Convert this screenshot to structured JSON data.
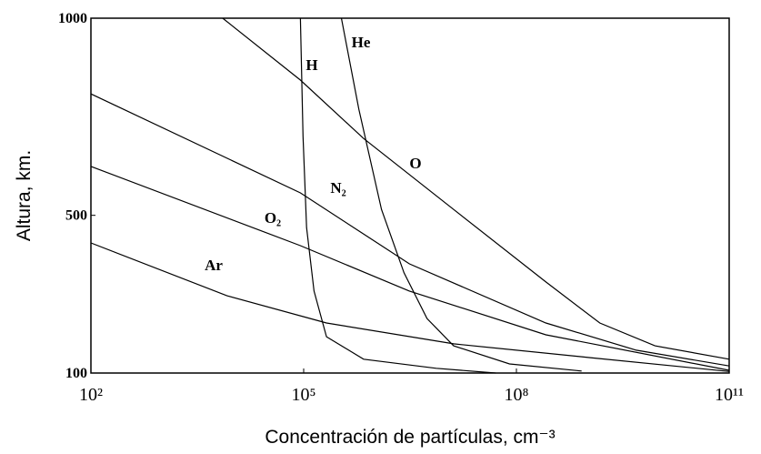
{
  "chart_data": {
    "type": "line",
    "xlabel": "Concentración de partículas, cm⁻³",
    "ylabel": "Altura, km.",
    "xscale": "log",
    "xlim": [
      100,
      100000000000
    ],
    "xticks": [
      {
        "value": 100,
        "label": "10²"
      },
      {
        "value": 100000,
        "label": "10⁵"
      },
      {
        "value": 100000000,
        "label": "10⁸"
      },
      {
        "value": 100000000000,
        "label": "10¹¹"
      }
    ],
    "ylim": [
      100,
      1000
    ],
    "yticks": [
      100,
      500,
      1000
    ],
    "color": "#000000",
    "series": [
      {
        "name": "H",
        "x": [
          90000,
          98000,
          110000,
          140000,
          210000,
          700000,
          7400000,
          51000000
        ],
        "values": [
          1000,
          700,
          469,
          308,
          192,
          135,
          112,
          100
        ]
      },
      {
        "name": "He",
        "x": [
          340000,
          600000,
          1250000,
          2600000,
          5500000,
          13000000,
          80000000,
          830000000
        ],
        "values": [
          1000,
          769,
          515,
          354,
          238,
          169,
          123,
          105
        ]
      },
      {
        "name": "O",
        "x": [
          7200,
          90000,
          700000,
          13000000,
          260000000,
          1500000000,
          9000000000,
          100000000000
        ],
        "values": [
          1000,
          843,
          695,
          515,
          331,
          227,
          169,
          135
        ]
      },
      {
        "name": "N₂",
        "x": [
          100,
          90000,
          3100000,
          260000000,
          4900000000,
          100000000000
        ],
        "values": [
          808,
          557,
          377,
          227,
          158,
          118
        ]
      },
      {
        "name": "O₂",
        "x": [
          100,
          90000,
          3100000,
          260000000,
          100000000000
        ],
        "values": [
          624,
          423,
          308,
          197,
          107
        ]
      },
      {
        "name": "Ar",
        "x": [
          100,
          8300,
          210000,
          13000000,
          1100000000,
          100000000000
        ],
        "values": [
          430,
          296,
          227,
          174,
          139,
          104
        ]
      }
    ]
  }
}
